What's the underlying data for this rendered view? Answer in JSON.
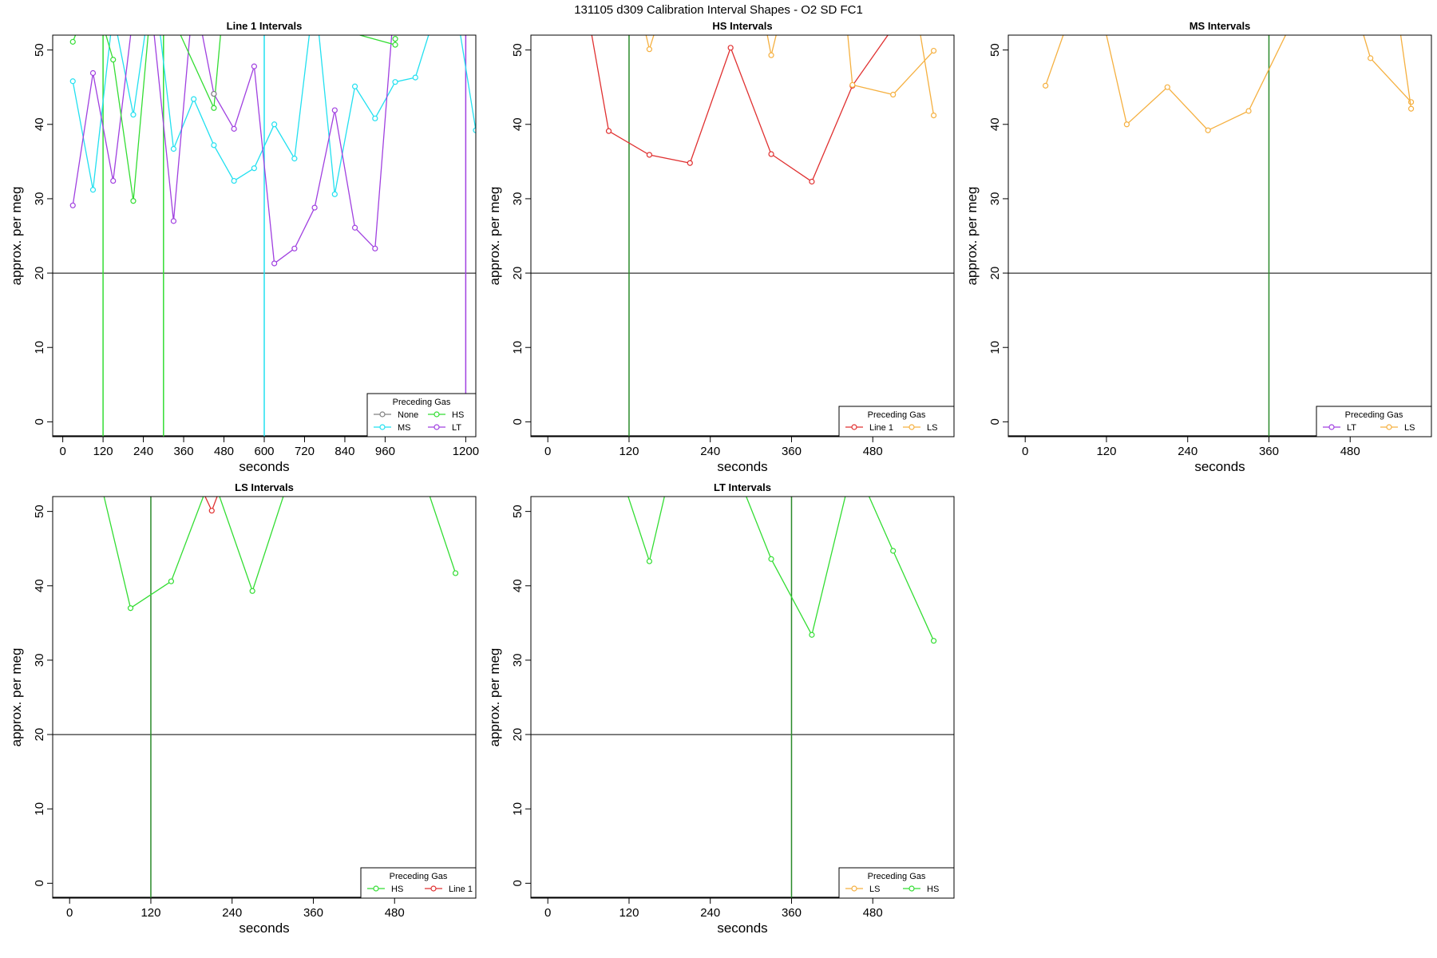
{
  "page": {
    "title": "131105   d309   Calibration Interval Shapes - O2 SD FC1"
  },
  "colors": {
    "None": "#808080",
    "HS": "#33dd33",
    "MS": "#22e0f0",
    "LT": "#a040e0",
    "Line 1": "#e03030",
    "LS": "#f5b040",
    "ref": "#000000",
    "vline_dark": "#2a8a2a"
  },
  "chart_data": [
    {
      "type": "line",
      "title": "Line 1 Intervals",
      "xlabel": "seconds",
      "ylabel": "approx. per meg",
      "xlim": [
        -30,
        1230
      ],
      "ylim": [
        -2,
        52
      ],
      "xticks": [
        0,
        120,
        240,
        360,
        480,
        600,
        720,
        840,
        960,
        1200
      ],
      "yticks": [
        0,
        10,
        20,
        30,
        40,
        50
      ],
      "hline": 20,
      "vlines": [
        {
          "x": 120,
          "color": "HS"
        },
        {
          "x": 300,
          "color": "HS"
        },
        {
          "x": 600,
          "color": "MS"
        },
        {
          "x": 1200,
          "color": "LT"
        }
      ],
      "legend": {
        "title": "Preceding Gas",
        "position": "bottom-right",
        "columns": 2,
        "entries": [
          "None",
          "HS",
          "MS",
          "LT"
        ]
      },
      "series": [
        {
          "name": "MS",
          "color": "MS",
          "values": [
            [
              30,
              45.8
            ],
            [
              90,
              31.2
            ],
            [
              150,
              55
            ],
            [
              210,
              41.3
            ],
            [
              270,
              60
            ],
            [
              330,
              36.7
            ],
            [
              390,
              43.4
            ],
            [
              450,
              37.2
            ],
            [
              510,
              32.4
            ],
            [
              570,
              34.1
            ],
            [
              630,
              40.0
            ],
            [
              690,
              35.4
            ],
            [
              750,
              58
            ],
            [
              810,
              30.6
            ],
            [
              870,
              45.1
            ],
            [
              930,
              40.8
            ],
            [
              990,
              45.7
            ],
            [
              1050,
              46.3
            ],
            [
              1110,
              55
            ],
            [
              1170,
              56
            ],
            [
              1230,
              39.2
            ],
            [
              1250,
              43
            ]
          ]
        },
        {
          "name": "LT",
          "color": "LT",
          "values": [
            [
              30,
              29.1
            ],
            [
              90,
              46.9
            ],
            [
              150,
              32.4
            ],
            [
              210,
              55
            ],
            [
              240,
              58
            ],
            [
              270,
              53
            ],
            [
              330,
              27.0
            ],
            [
              390,
              58
            ],
            [
              450,
              44.1
            ],
            [
              510,
              39.4
            ],
            [
              570,
              47.8
            ],
            [
              630,
              21.3
            ],
            [
              690,
              23.3
            ],
            [
              750,
              28.8
            ],
            [
              810,
              41.9
            ],
            [
              870,
              26.1
            ],
            [
              930,
              23.3
            ],
            [
              990,
              58
            ]
          ]
        },
        {
          "name": "HS",
          "color": "HS",
          "values": [
            [
              30,
              51.1
            ],
            [
              90,
              58
            ],
            [
              150,
              48.7
            ],
            [
              210,
              29.7
            ],
            [
              270,
              60
            ],
            [
              450,
              42.2
            ],
            [
              480,
              57
            ],
            [
              990,
              50.7
            ],
            [
              990,
              51.5
            ]
          ]
        },
        {
          "name": "None",
          "color": "None",
          "values": [
            [
              450,
              44.1
            ]
          ]
        }
      ]
    },
    {
      "type": "line",
      "title": "HS Intervals",
      "xlabel": "seconds",
      "ylabel": "approx. per meg",
      "xlim": [
        -25,
        600
      ],
      "ylim": [
        -2,
        52
      ],
      "xticks": [
        0,
        120,
        240,
        360,
        480
      ],
      "yticks": [
        0,
        10,
        20,
        30,
        40,
        50
      ],
      "hline": 20,
      "vlines": [
        {
          "x": 120,
          "color": "vline_dark"
        }
      ],
      "legend": {
        "title": "Preceding Gas",
        "position": "bottom-right",
        "columns": 2,
        "entries": [
          "Line 1",
          "LS"
        ]
      },
      "series": [
        {
          "name": "Line 1",
          "color": "Line 1",
          "values": [
            [
              30,
              70
            ],
            [
              90,
              39.1
            ],
            [
              150,
              35.9
            ],
            [
              210,
              34.8
            ],
            [
              270,
              50.3
            ],
            [
              330,
              36.0
            ],
            [
              390,
              32.3
            ],
            [
              450,
              45.2
            ],
            [
              510,
              53
            ]
          ]
        },
        {
          "name": "LS",
          "color": "LS",
          "values": [
            [
              140,
              54
            ],
            [
              150,
              50.1
            ],
            [
              160,
              53
            ],
            [
              320,
              54
            ],
            [
              330,
              49.3
            ],
            [
              340,
              53
            ],
            [
              440,
              55
            ],
            [
              450,
              45.3
            ],
            [
              510,
              44.0
            ],
            [
              570,
              49.9
            ]
          ]
        },
        {
          "name": "LS",
          "color": "LS",
          "values": [
            [
              545,
              55
            ],
            [
              570,
              41.2
            ]
          ]
        }
      ]
    },
    {
      "type": "line",
      "title": "MS Intervals",
      "xlabel": "seconds",
      "ylabel": "approx. per meg",
      "xlim": [
        -25,
        600
      ],
      "ylim": [
        -2,
        52
      ],
      "xticks": [
        0,
        120,
        240,
        360,
        480
      ],
      "yticks": [
        0,
        10,
        20,
        30,
        40,
        50
      ],
      "hline": 20,
      "vlines": [
        {
          "x": 360,
          "color": "vline_dark"
        }
      ],
      "legend": {
        "title": "Preceding Gas",
        "position": "bottom-right",
        "columns": 2,
        "entries": [
          "LT",
          "LS"
        ]
      },
      "series": [
        {
          "name": "LS",
          "color": "LS",
          "values": [
            [
              30,
              45.2
            ],
            [
              60,
              53
            ],
            [
              110,
              56
            ],
            [
              150,
              40.0
            ],
            [
              210,
              45.0
            ],
            [
              270,
              39.2
            ],
            [
              330,
              41.8
            ],
            [
              390,
              53
            ]
          ]
        },
        {
          "name": "LS",
          "color": "LS",
          "values": [
            [
              490,
              55
            ],
            [
              510,
              48.9
            ],
            [
              570,
              43.0
            ]
          ]
        },
        {
          "name": "LS",
          "color": "LS",
          "values": [
            [
              550,
              55
            ],
            [
              570,
              42.1
            ]
          ]
        }
      ]
    },
    {
      "type": "line",
      "title": "LS Intervals",
      "xlabel": "seconds",
      "ylabel": "approx. per meg",
      "xlim": [
        -25,
        600
      ],
      "ylim": [
        -2,
        52
      ],
      "xticks": [
        0,
        120,
        240,
        360,
        480
      ],
      "yticks": [
        0,
        10,
        20,
        30,
        40,
        50
      ],
      "hline": 20,
      "vlines": [
        {
          "x": 120,
          "color": "vline_dark"
        }
      ],
      "legend": {
        "title": "Preceding Gas",
        "position": "bottom-right",
        "columns": 2,
        "entries": [
          "HS",
          "Line 1"
        ]
      },
      "series": [
        {
          "name": "HS",
          "color": "HS",
          "values": [
            [
              30,
              60
            ],
            [
              90,
              37.0
            ],
            [
              150,
              40.6
            ],
            [
              210,
              55
            ],
            [
              270,
              39.3
            ],
            [
              330,
              56
            ]
          ]
        },
        {
          "name": "HS",
          "color": "HS",
          "values": [
            [
              510,
              58
            ],
            [
              570,
              41.7
            ]
          ]
        },
        {
          "name": "Line 1",
          "color": "Line 1",
          "values": [
            [
              195,
              53
            ],
            [
              210,
              50.1
            ],
            [
              222,
              53
            ]
          ]
        }
      ]
    },
    {
      "type": "line",
      "title": "LT Intervals",
      "xlabel": "seconds",
      "ylabel": "approx. per meg",
      "xlim": [
        -25,
        600
      ],
      "ylim": [
        -2,
        52
      ],
      "xticks": [
        0,
        120,
        240,
        360,
        480
      ],
      "yticks": [
        0,
        10,
        20,
        30,
        40,
        50
      ],
      "hline": 20,
      "vlines": [
        {
          "x": 360,
          "color": "vline_dark"
        }
      ],
      "legend": {
        "title": "Preceding Gas",
        "position": "bottom-right",
        "columns": 2,
        "entries": [
          "LS",
          "HS"
        ]
      },
      "series": [
        {
          "name": "HS",
          "color": "HS",
          "values": [
            [
              90,
              60
            ],
            [
              150,
              43.3
            ],
            [
              180,
              55
            ],
            [
              280,
              55
            ],
            [
              330,
              43.6
            ],
            [
              390,
              33.4
            ],
            [
              450,
              56
            ],
            [
              460,
              55
            ],
            [
              510,
              44.7
            ],
            [
              570,
              32.6
            ]
          ]
        }
      ]
    }
  ]
}
